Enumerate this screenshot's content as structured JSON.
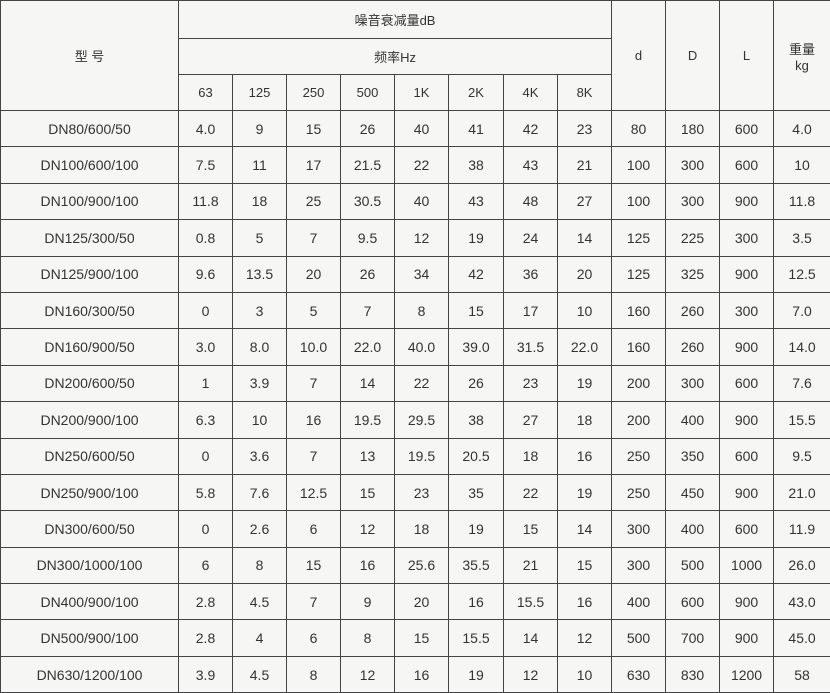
{
  "header": {
    "model": "型 号",
    "attenuation": "噪音衰减量dB",
    "frequency": "频率Hz",
    "frequencies": [
      "63",
      "125",
      "250",
      "500",
      "1K",
      "2K",
      "4K",
      "8K"
    ],
    "d": "d",
    "D": "D",
    "L": "L",
    "weight": "重量",
    "weight_unit": "kg"
  },
  "rows": [
    [
      "DN80/600/50",
      "4.0",
      "9",
      "15",
      "26",
      "40",
      "41",
      "42",
      "23",
      "80",
      "180",
      "600",
      "4.0"
    ],
    [
      "DN100/600/100",
      "7.5",
      "11",
      "17",
      "21.5",
      "22",
      "38",
      "43",
      "21",
      "100",
      "300",
      "600",
      "10"
    ],
    [
      "DN100/900/100",
      "11.8",
      "18",
      "25",
      "30.5",
      "40",
      "43",
      "48",
      "27",
      "100",
      "300",
      "900",
      "11.8"
    ],
    [
      "DN125/300/50",
      "0.8",
      "5",
      "7",
      "9.5",
      "12",
      "19",
      "24",
      "14",
      "125",
      "225",
      "300",
      "3.5"
    ],
    [
      "DN125/900/100",
      "9.6",
      "13.5",
      "20",
      "26",
      "34",
      "42",
      "36",
      "20",
      "125",
      "325",
      "900",
      "12.5"
    ],
    [
      "DN160/300/50",
      "0",
      "3",
      "5",
      "7",
      "8",
      "15",
      "17",
      "10",
      "160",
      "260",
      "300",
      "7.0"
    ],
    [
      "DN160/900/50",
      "3.0",
      "8.0",
      "10.0",
      "22.0",
      "40.0",
      "39.0",
      "31.5",
      "22.0",
      "160",
      "260",
      "900",
      "14.0"
    ],
    [
      "DN200/600/50",
      "1",
      "3.9",
      "7",
      "14",
      "22",
      "26",
      "23",
      "19",
      "200",
      "300",
      "600",
      "7.6"
    ],
    [
      "DN200/900/100",
      "6.3",
      "10",
      "16",
      "19.5",
      "29.5",
      "38",
      "27",
      "18",
      "200",
      "400",
      "900",
      "15.5"
    ],
    [
      "DN250/600/50",
      "0",
      "3.6",
      "7",
      "13",
      "19.5",
      "20.5",
      "18",
      "16",
      "250",
      "350",
      "600",
      "9.5"
    ],
    [
      "DN250/900/100",
      "5.8",
      "7.6",
      "12.5",
      "15",
      "23",
      "35",
      "22",
      "19",
      "250",
      "450",
      "900",
      "21.0"
    ],
    [
      "DN300/600/50",
      "0",
      "2.6",
      "6",
      "12",
      "18",
      "19",
      "15",
      "14",
      "300",
      "400",
      "600",
      "11.9"
    ],
    [
      "DN300/1000/100",
      "6",
      "8",
      "15",
      "16",
      "25.6",
      "35.5",
      "21",
      "15",
      "300",
      "500",
      "1000",
      "26.0"
    ],
    [
      "DN400/900/100",
      "2.8",
      "4.5",
      "7",
      "9",
      "20",
      "16",
      "15.5",
      "16",
      "400",
      "600",
      "900",
      "43.0"
    ],
    [
      "DN500/900/100",
      "2.8",
      "4",
      "6",
      "8",
      "15",
      "15.5",
      "14",
      "12",
      "500",
      "700",
      "900",
      "45.0"
    ],
    [
      "DN630/1200/100",
      "3.9",
      "4.5",
      "8",
      "12",
      "16",
      "19",
      "12",
      "10",
      "630",
      "830",
      "1200",
      "58"
    ]
  ]
}
